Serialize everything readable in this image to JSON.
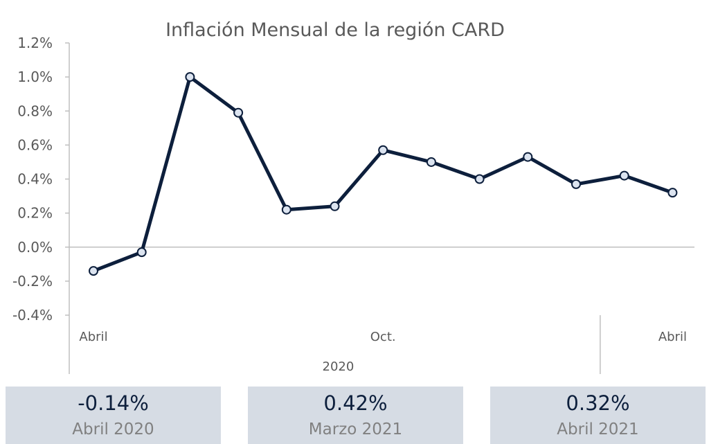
{
  "chart_data": {
    "type": "line",
    "title": "Inflación Mensual de la región CARD",
    "series": [
      {
        "values": [
          -0.14,
          -0.03,
          1.0,
          0.79,
          0.22,
          0.24,
          0.57,
          0.5,
          0.4,
          0.53,
          0.37,
          0.42,
          0.32
        ]
      }
    ],
    "ylim": [
      -0.4,
      1.2
    ],
    "yticks": [
      "1.2%",
      "1.0%",
      "0.8%",
      "0.6%",
      "0.4%",
      "0.2%",
      "0.0%",
      "-0.2%",
      "-0.4%"
    ],
    "x_labels": [
      {
        "index": 0,
        "text": "Abril"
      },
      {
        "index": 6,
        "text": "Oct."
      },
      {
        "index": 12,
        "text": "Abril"
      }
    ],
    "x_group_label": "2020",
    "line_color": "#0d1f3c",
    "marker_fill": "#dce4f0"
  },
  "cards": [
    {
      "value": "-0.14%",
      "label": "Abril 2020"
    },
    {
      "value": "0.42%",
      "label": "Marzo 2021"
    },
    {
      "value": "0.32%",
      "label": "Abril 2021"
    }
  ]
}
